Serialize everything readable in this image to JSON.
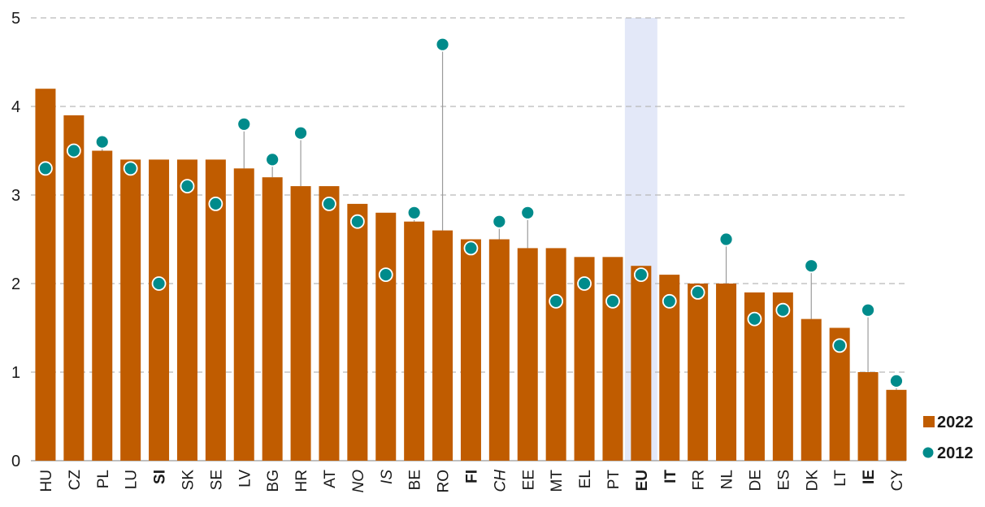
{
  "chart_data": {
    "type": "bar",
    "title": "",
    "xlabel": "",
    "ylabel": "",
    "ylim": [
      0,
      5
    ],
    "yticks": [
      "0",
      "1",
      "2",
      "3",
      "4",
      "5"
    ],
    "grid": true,
    "legend_position": "bottom-right",
    "highlight_category": "EU",
    "categories": [
      "HU",
      "CZ",
      "PL",
      "LU",
      "SI",
      "SK",
      "SE",
      "LV",
      "BG",
      "HR",
      "AT",
      "NO",
      "IS",
      "BE",
      "RO",
      "FI",
      "CH",
      "EE",
      "MT",
      "EL",
      "PT",
      "EU",
      "IT",
      "FR",
      "NL",
      "DE",
      "ES",
      "DK",
      "LT",
      "IE",
      "CY"
    ],
    "label_styles": {
      "SI": "bold",
      "FI": "bold",
      "EU": "bold-blue",
      "IT": "bold",
      "IE": "bold",
      "NO": "italic",
      "IS": "italic",
      "CH": "italic"
    },
    "series": [
      {
        "name": "2022",
        "type": "bar",
        "color": "#c05c00",
        "values": [
          4.2,
          3.9,
          3.5,
          3.4,
          3.4,
          3.4,
          3.4,
          3.3,
          3.2,
          3.1,
          3.1,
          2.9,
          2.8,
          2.7,
          2.6,
          2.5,
          2.5,
          2.4,
          2.4,
          2.3,
          2.3,
          2.2,
          2.1,
          2.0,
          2.0,
          1.9,
          1.9,
          1.6,
          1.5,
          1.0,
          0.8
        ]
      },
      {
        "name": "2012",
        "type": "dot",
        "color": "#008b8b",
        "values": [
          3.3,
          3.5,
          3.6,
          3.3,
          2.0,
          3.1,
          2.9,
          3.8,
          3.4,
          3.7,
          2.9,
          2.7,
          2.1,
          2.8,
          4.7,
          2.4,
          2.7,
          2.8,
          1.8,
          2.0,
          1.8,
          2.1,
          1.8,
          1.9,
          2.5,
          1.6,
          1.7,
          2.2,
          1.3,
          1.7,
          0.9
        ]
      }
    ],
    "colors": {
      "highlight_band": "#e3e8f8",
      "eu_label": "#0a3d91",
      "connector": "#9a9a9a"
    }
  }
}
